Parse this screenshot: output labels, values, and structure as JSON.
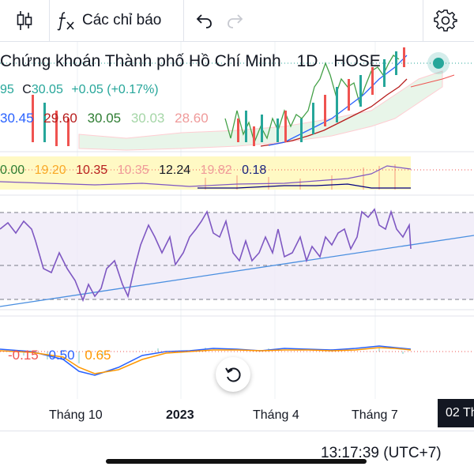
{
  "toolbar": {
    "indicators_label": "Các chỉ báo",
    "icons": [
      "candles-icon",
      "fx-icon",
      "undo-icon",
      "redo-icon",
      "gear-icon"
    ]
  },
  "chart_title": {
    "name": "Chứng khoán Thành phố Hồ Chí Minh",
    "interval": "1D",
    "exchange": "HOSE"
  },
  "ohlc": {
    "open_fragment": "95",
    "close_label": "C",
    "close_value": "30.05",
    "change": "+0.05",
    "change_pct": "(+0.17%)"
  },
  "ichimoku_values": [
    "30.45",
    "29.60",
    "30.05",
    "30.03",
    "28.60"
  ],
  "panel2_values": [
    "0.00",
    "19.20",
    "10.35",
    "10.35",
    "12.24",
    "19.82",
    "0.18"
  ],
  "macd_values": [
    "-0.15",
    "0.50",
    "0.65"
  ],
  "time_axis": {
    "labels": [
      "Tháng 10",
      "2023",
      "Tháng 4",
      "Tháng 7"
    ],
    "current_date": "02 Th"
  },
  "status": {
    "clock": "13:17:39 (UTC+7)"
  },
  "colors": {
    "price_line": "#2962ff",
    "up": "#26a69a",
    "down": "#ef5350",
    "rsi_line": "#7e57c2",
    "rsi_band": "#ede7f6",
    "trend_line": "#4a8fe0",
    "green_line": "#43a047",
    "dark_red": "#b71c1c",
    "yellow_fill": "#fff9c4"
  }
}
